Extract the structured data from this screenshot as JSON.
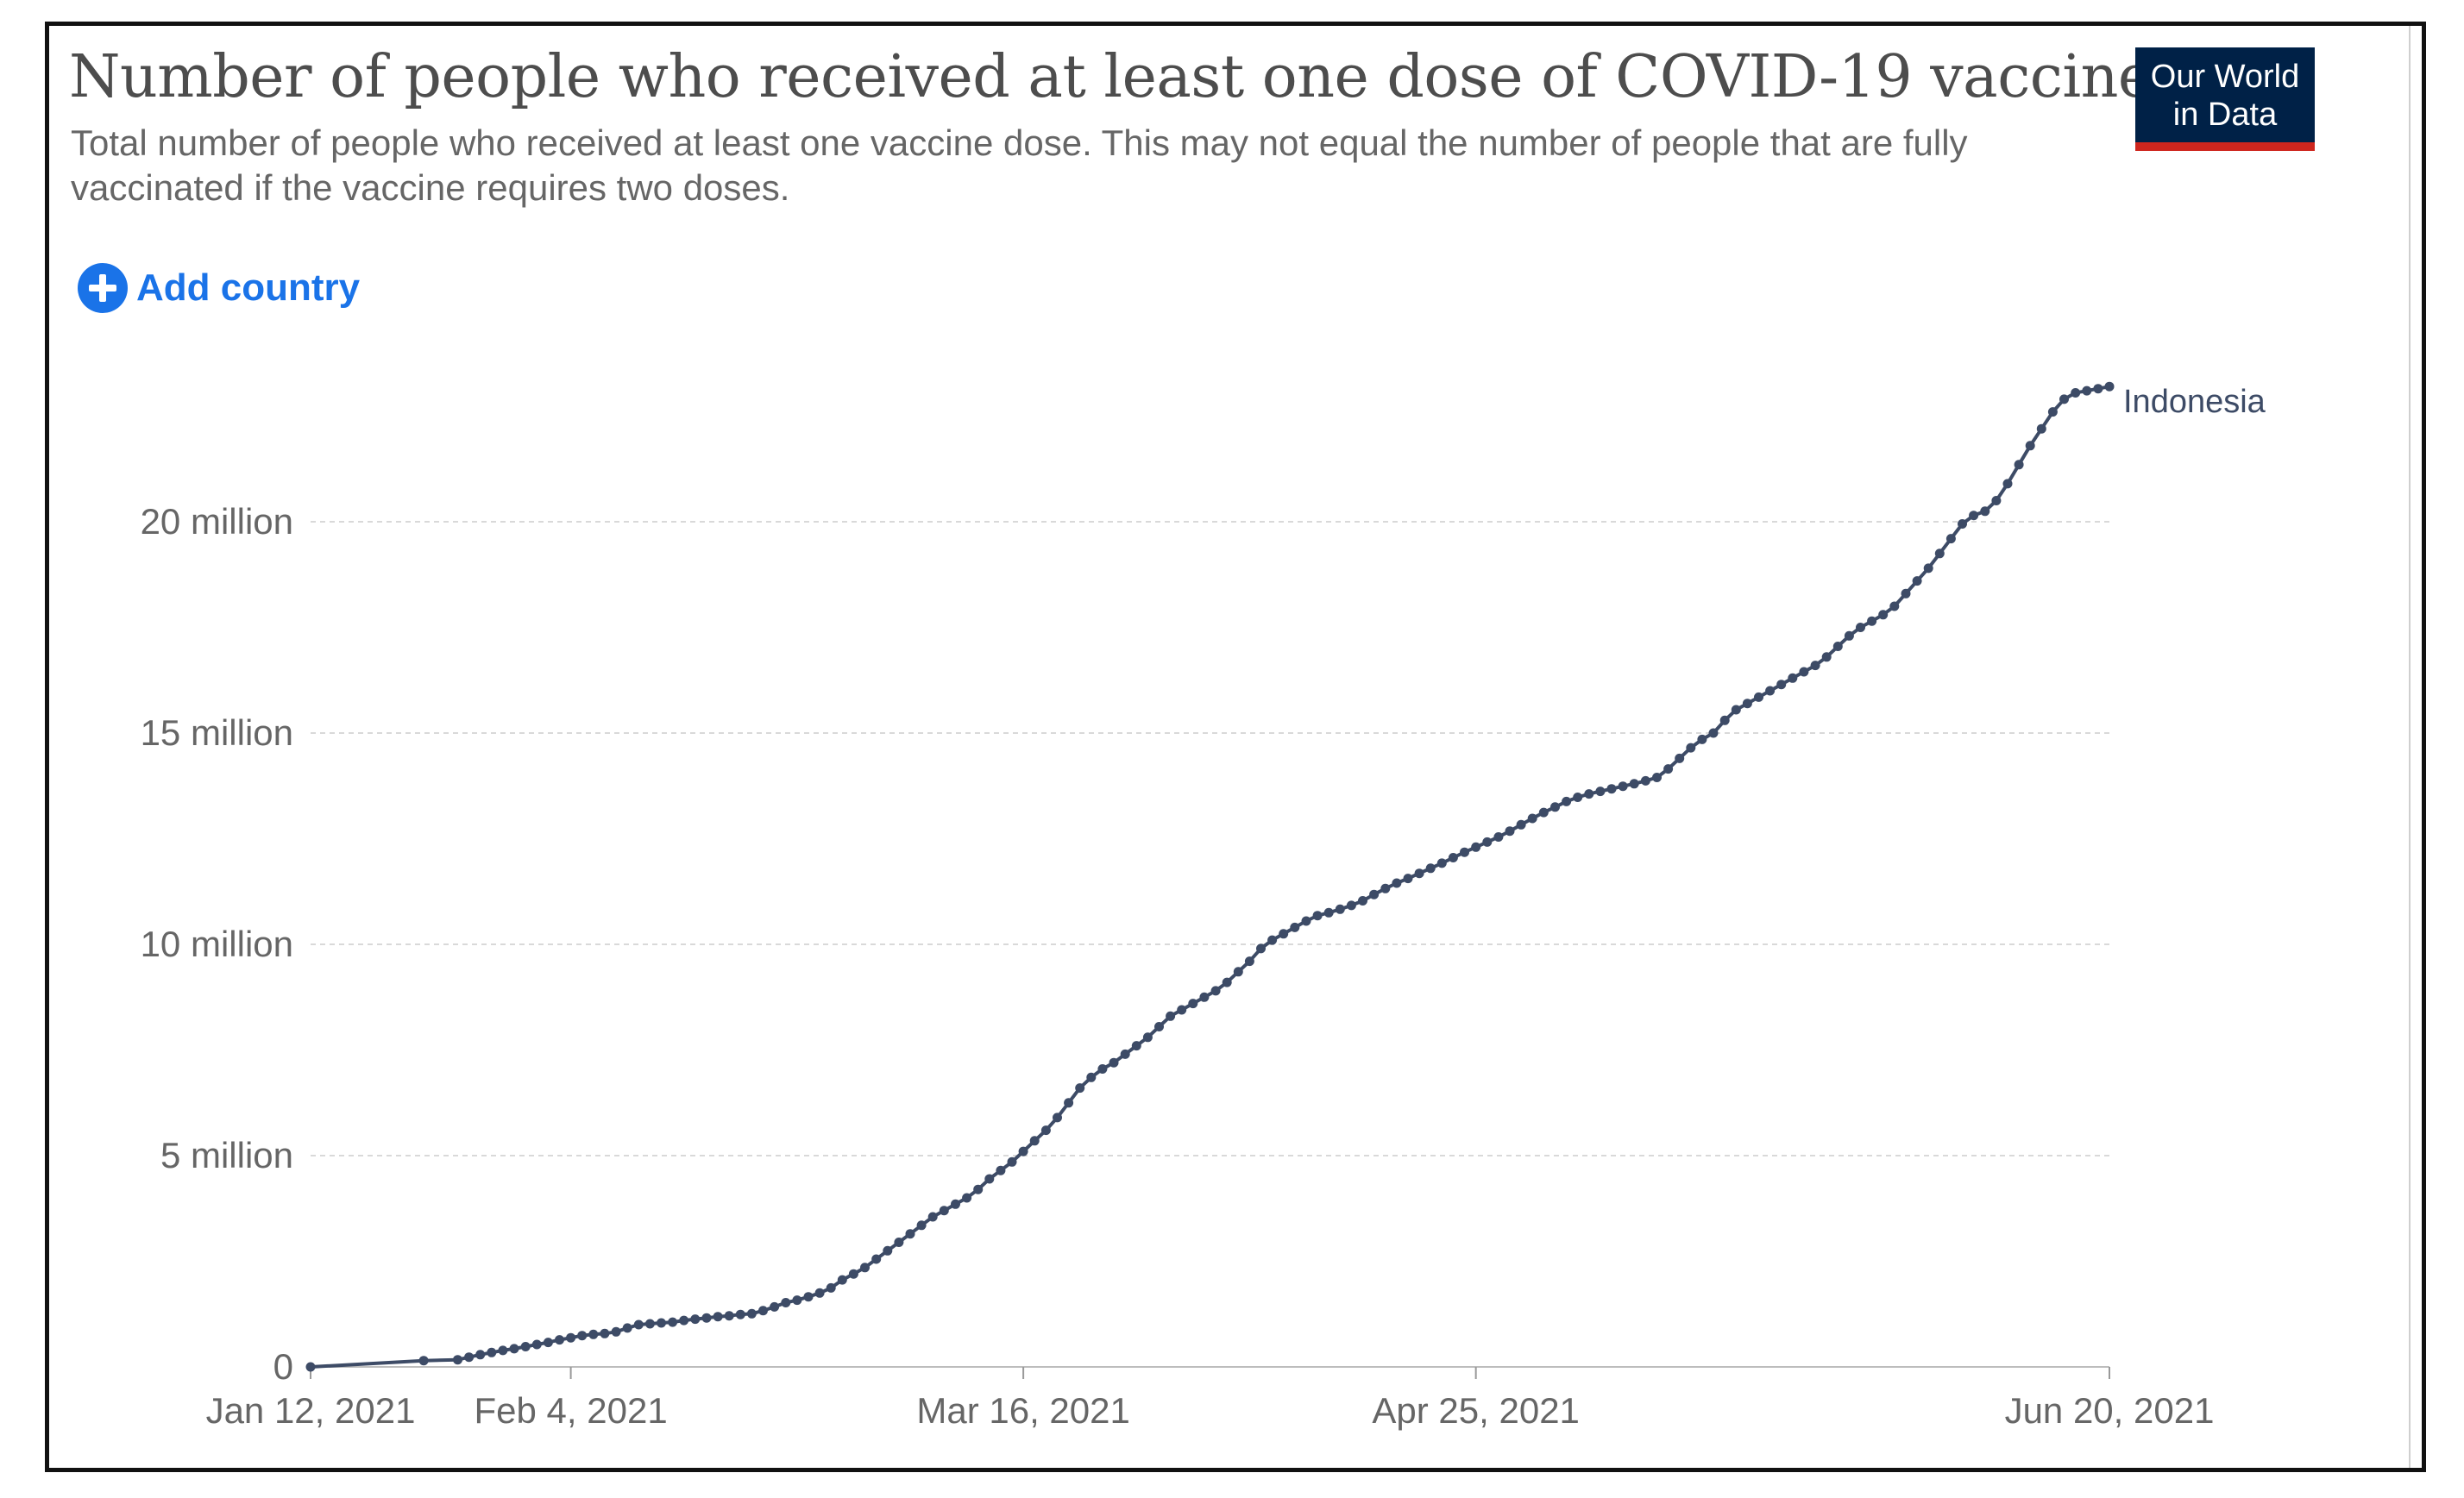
{
  "header": {
    "title": "Number of people who received at least one dose of COVID-19 vaccine",
    "subtitle": "Total number of people who received at least one vaccine dose. This may not equal the number of people that are fully vaccinated if the vaccine requires two doses.",
    "logo_line1": "Our World",
    "logo_line2": "in Data",
    "add_country_label": "Add country"
  },
  "colors": {
    "series": "#3d4b66",
    "grid": "#d9d9d9",
    "axis_text": "#666666",
    "logo_bg": "#002147",
    "logo_accent": "#ce261e",
    "link": "#1a73e8"
  },
  "chart_data": {
    "type": "line",
    "title": "Number of people who received at least one dose of COVID-19 vaccine",
    "xlabel": "",
    "ylabel": "",
    "x_range_days": [
      0,
      159
    ],
    "ylim": [
      0,
      23000000
    ],
    "y_ticks": [
      {
        "value": 0,
        "label": "0"
      },
      {
        "value": 5000000,
        "label": "5 million"
      },
      {
        "value": 10000000,
        "label": "10 million"
      },
      {
        "value": 15000000,
        "label": "15 million"
      },
      {
        "value": 20000000,
        "label": "20 million"
      }
    ],
    "x_ticks": [
      {
        "day": 0,
        "label": "Jan 12, 2021"
      },
      {
        "day": 23,
        "label": "Feb 4, 2021"
      },
      {
        "day": 63,
        "label": "Mar 16, 2021"
      },
      {
        "day": 103,
        "label": "Apr 25, 2021"
      },
      {
        "day": 159,
        "label": "Jun 20, 2021"
      }
    ],
    "grid": true,
    "series": [
      {
        "name": "Indonesia",
        "x": [
          0,
          10,
          13,
          14,
          15,
          16,
          17,
          18,
          19,
          20,
          21,
          22,
          23,
          24,
          25,
          26,
          27,
          28,
          29,
          30,
          31,
          32,
          33,
          34,
          35,
          36,
          37,
          38,
          39,
          40,
          41,
          42,
          43,
          44,
          45,
          46,
          47,
          48,
          49,
          50,
          51,
          52,
          53,
          54,
          55,
          56,
          57,
          58,
          59,
          60,
          61,
          62,
          63,
          64,
          65,
          66,
          67,
          68,
          69,
          70,
          71,
          72,
          73,
          74,
          75,
          76,
          77,
          78,
          79,
          80,
          81,
          82,
          83,
          84,
          85,
          86,
          87,
          88,
          89,
          90,
          91,
          92,
          93,
          94,
          95,
          96,
          97,
          98,
          99,
          100,
          101,
          102,
          103,
          104,
          105,
          106,
          107,
          108,
          109,
          110,
          111,
          112,
          113,
          114,
          115,
          116,
          117,
          118,
          119,
          120,
          121,
          122,
          123,
          124,
          125,
          126,
          127,
          128,
          129,
          130,
          131,
          132,
          133,
          134,
          135,
          136,
          137,
          138,
          139,
          140,
          141,
          142,
          143,
          144,
          145,
          146,
          147,
          148,
          149,
          150,
          151,
          152,
          153,
          154,
          155,
          156,
          157,
          158,
          159
        ],
        "values": [
          0,
          150000,
          170000,
          230000,
          290000,
          340000,
          390000,
          430000,
          480000,
          530000,
          580000,
          640000,
          690000,
          740000,
          770000,
          790000,
          830000,
          920000,
          1000000,
          1020000,
          1040000,
          1060000,
          1100000,
          1130000,
          1160000,
          1190000,
          1210000,
          1240000,
          1260000,
          1330000,
          1420000,
          1520000,
          1580000,
          1660000,
          1750000,
          1870000,
          2060000,
          2200000,
          2350000,
          2550000,
          2750000,
          2950000,
          3150000,
          3350000,
          3550000,
          3700000,
          3850000,
          4000000,
          4200000,
          4450000,
          4650000,
          4850000,
          5100000,
          5350000,
          5600000,
          5900000,
          6250000,
          6600000,
          6850000,
          7050000,
          7200000,
          7400000,
          7600000,
          7800000,
          8050000,
          8300000,
          8450000,
          8600000,
          8750000,
          8900000,
          9100000,
          9350000,
          9600000,
          9900000,
          10100000,
          10250000,
          10400000,
          10550000,
          10680000,
          10750000,
          10830000,
          10920000,
          11030000,
          11180000,
          11320000,
          11450000,
          11560000,
          11680000,
          11800000,
          11920000,
          12050000,
          12180000,
          12300000,
          12420000,
          12540000,
          12680000,
          12830000,
          12980000,
          13120000,
          13250000,
          13380000,
          13480000,
          13560000,
          13620000,
          13680000,
          13740000,
          13800000,
          13870000,
          13950000,
          14150000,
          14400000,
          14650000,
          14850000,
          15000000,
          15300000,
          15550000,
          15700000,
          15850000,
          16000000,
          16150000,
          16300000,
          16450000,
          16600000,
          16800000,
          17050000,
          17300000,
          17500000,
          17650000,
          17800000,
          18000000,
          18300000,
          18600000,
          18900000,
          19250000,
          19600000,
          19950000,
          20150000,
          20250000,
          20500000,
          20900000,
          21350000,
          21800000,
          22200000,
          22600000,
          22900000,
          23050000,
          23100000,
          23150000,
          23200000
        ]
      }
    ]
  }
}
